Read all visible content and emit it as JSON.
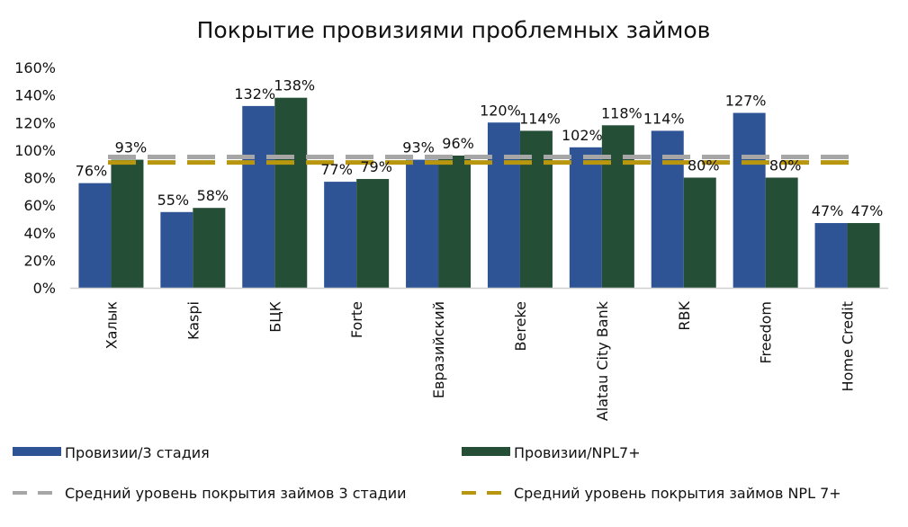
{
  "chart_data": {
    "type": "bar",
    "title": "Покрытие провизиями проблемных займов",
    "xlabel": "",
    "ylabel": "",
    "ylim": [
      0,
      160
    ],
    "yticks": [
      "0%",
      "20%",
      "40%",
      "60%",
      "80%",
      "100%",
      "120%",
      "140%",
      "160%"
    ],
    "grid": false,
    "legend_position": "bottom",
    "categories": [
      "Халык",
      "Kaspi",
      "БЦК",
      "Forte",
      "Евразийский",
      "Bereke",
      "Alatau City Bank",
      "RBK",
      "Freedom",
      "Home Credit"
    ],
    "series": [
      {
        "name": "Провизии/3 стадия",
        "color": "#2f5496",
        "values": [
          76,
          55,
          132,
          77,
          93,
          120,
          102,
          114,
          127,
          47
        ],
        "labels": [
          "76%",
          "55%",
          "132%",
          "77%",
          "93%",
          "120%",
          "102%",
          "114%",
          "127%",
          "47%"
        ]
      },
      {
        "name": "Провизии/NPL7+",
        "color": "#254e37",
        "values": [
          93,
          58,
          138,
          79,
          96,
          114,
          118,
          80,
          80,
          47
        ],
        "labels": [
          "93%",
          "58%",
          "138%",
          "79%",
          "96%",
          "114%",
          "118%",
          "80%",
          "80%",
          "47%"
        ]
      }
    ],
    "reference_lines": [
      {
        "name": "Средний уровень покрытия займов 3 стадии",
        "value": 95,
        "color": "#a6a6a6",
        "style": "dashed"
      },
      {
        "name": "Средний уровень покрытия займов NPL 7+",
        "value": 91,
        "color": "#b8970f",
        "style": "dashed"
      }
    ]
  }
}
